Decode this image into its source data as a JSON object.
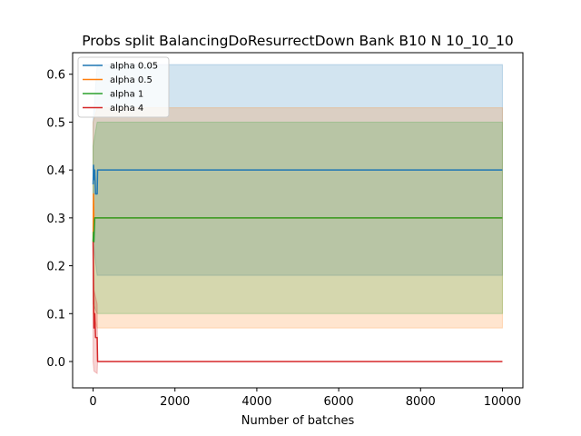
{
  "chart_data": {
    "type": "line",
    "title": "Probs split BalancingDoResurrectDown Bank B10 N 10_10_10",
    "xlabel": "Number of batches",
    "ylabel": "",
    "xlim": [
      -500,
      10500
    ],
    "ylim": [
      -0.055,
      0.645
    ],
    "xticks": [
      0,
      2000,
      4000,
      6000,
      8000,
      10000
    ],
    "yticks": [
      0.0,
      0.1,
      0.2,
      0.3,
      0.4,
      0.5,
      0.6
    ],
    "xtick_labels": [
      "0",
      "2000",
      "4000",
      "6000",
      "8000",
      "10000"
    ],
    "ytick_labels": [
      "0.0",
      "0.1",
      "0.2",
      "0.3",
      "0.4",
      "0.5",
      "0.6"
    ],
    "grid": false,
    "legend_position": "top-left",
    "series": [
      {
        "name": "alpha 0.05",
        "color": "#1f77b4",
        "points": [
          [
            0,
            0.37
          ],
          [
            10,
            0.41
          ],
          [
            20,
            0.38
          ],
          [
            40,
            0.4
          ],
          [
            60,
            0.35
          ],
          [
            80,
            0.35
          ],
          [
            100,
            0.35
          ],
          [
            110,
            0.4
          ],
          [
            10000,
            0.4
          ]
        ],
        "band": {
          "x": [
            0,
            100,
            10000
          ],
          "lower": [
            0.25,
            0.18,
            0.18
          ],
          "upper": [
            0.5,
            0.62,
            0.62
          ]
        }
      },
      {
        "name": "alpha 0.5",
        "color": "#ff7f0e",
        "points": [
          [
            0,
            0.25
          ],
          [
            10,
            0.35
          ],
          [
            20,
            0.3
          ],
          [
            40,
            0.3
          ],
          [
            10000,
            0.3
          ]
        ],
        "band": {
          "x": [
            0,
            100,
            10000
          ],
          "lower": [
            0.1,
            0.07,
            0.07
          ],
          "upper": [
            0.5,
            0.53,
            0.53
          ]
        }
      },
      {
        "name": "alpha 1",
        "color": "#2ca02c",
        "points": [
          [
            0,
            0.25
          ],
          [
            10,
            0.27
          ],
          [
            20,
            0.25
          ],
          [
            40,
            0.3
          ],
          [
            10000,
            0.3
          ]
        ],
        "band": {
          "x": [
            0,
            100,
            10000
          ],
          "lower": [
            0.12,
            0.1,
            0.1
          ],
          "upper": [
            0.45,
            0.5,
            0.5
          ]
        }
      },
      {
        "name": "alpha 4",
        "color": "#d62728",
        "points": [
          [
            0,
            0.25
          ],
          [
            10,
            0.15
          ],
          [
            20,
            0.07
          ],
          [
            40,
            0.1
          ],
          [
            60,
            0.05
          ],
          [
            100,
            0.05
          ],
          [
            110,
            0.0
          ],
          [
            10000,
            0.0
          ]
        ],
        "band": {
          "x": [
            0,
            20,
            100,
            110,
            10000
          ],
          "lower": [
            0.0,
            -0.02,
            -0.025,
            0.0,
            0.0
          ],
          "upper": [
            0.25,
            0.15,
            0.12,
            0.0,
            0.0
          ]
        }
      }
    ]
  }
}
